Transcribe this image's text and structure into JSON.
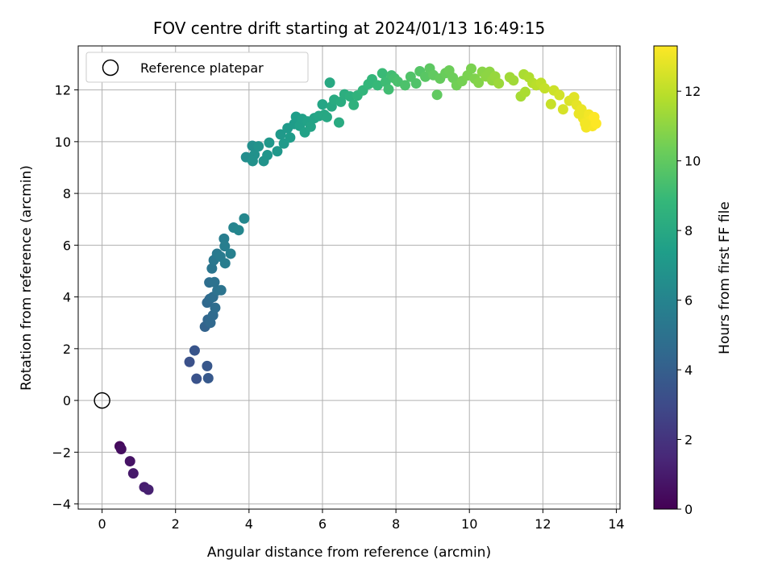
{
  "chart_data": {
    "type": "scatter",
    "title": "FOV centre drift starting at 2024/01/13 16:49:15",
    "xlabel": "Angular distance from reference (arcmin)",
    "ylabel": "Rotation from reference (arcmin)",
    "xlim": [
      -0.65,
      14.1
    ],
    "ylim": [
      -4.2,
      13.7
    ],
    "xticks": [
      0,
      2,
      4,
      6,
      8,
      10,
      12,
      14
    ],
    "yticks": [
      -4,
      -2,
      0,
      2,
      4,
      6,
      8,
      10,
      12
    ],
    "xtick_labels": [
      "0",
      "2",
      "4",
      "6",
      "8",
      "10",
      "12",
      "14"
    ],
    "ytick_labels": [
      "−4",
      "−2",
      "0",
      "2",
      "4",
      "6",
      "8",
      "10",
      "12"
    ],
    "grid": true,
    "colormap": "viridis",
    "colorbar": {
      "label": "Hours from first FF file",
      "range": [
        0,
        13.3
      ],
      "ticks": [
        0,
        2,
        4,
        6,
        8,
        10,
        12
      ],
      "tick_labels": [
        "0",
        "2",
        "4",
        "6",
        "8",
        "10",
        "12"
      ]
    },
    "legend": {
      "position": "top-left",
      "entries": [
        {
          "label": "Reference platepar",
          "marker": "open-circle",
          "color": "#000000"
        }
      ]
    },
    "reference_point": {
      "x": 0,
      "y": 0
    },
    "points": [
      [
        0.48,
        -1.77,
        0.3
      ],
      [
        0.52,
        -1.88,
        0.5
      ],
      [
        0.76,
        -2.35,
        0.7
      ],
      [
        0.85,
        -2.82,
        0.9
      ],
      [
        1.15,
        -3.35,
        1.1
      ],
      [
        1.26,
        -3.45,
        1.2
      ],
      [
        2.38,
        1.49,
        3.3
      ],
      [
        2.52,
        1.93,
        3.5
      ],
      [
        2.57,
        0.84,
        3.4
      ],
      [
        2.86,
        1.33,
        3.6
      ],
      [
        2.89,
        0.86,
        3.7
      ],
      [
        2.8,
        2.85,
        4.2
      ],
      [
        2.88,
        3.12,
        4.4
      ],
      [
        2.95,
        3.0,
        4.5
      ],
      [
        3.02,
        3.29,
        4.6
      ],
      [
        2.86,
        3.78,
        4.5
      ],
      [
        2.93,
        3.92,
        4.6
      ],
      [
        3.08,
        3.58,
        4.7
      ],
      [
        3.02,
        4.0,
        4.8
      ],
      [
        2.92,
        4.56,
        4.8
      ],
      [
        3.06,
        4.57,
        5.0
      ],
      [
        3.14,
        4.25,
        5.0
      ],
      [
        3.24,
        4.26,
        5.1
      ],
      [
        2.99,
        5.1,
        5.2
      ],
      [
        3.04,
        5.42,
        5.3
      ],
      [
        3.13,
        5.67,
        5.4
      ],
      [
        3.22,
        5.56,
        5.5
      ],
      [
        3.32,
        6.25,
        5.6
      ],
      [
        3.34,
        5.96,
        5.7
      ],
      [
        3.35,
        5.3,
        5.6
      ],
      [
        3.5,
        5.67,
        5.8
      ],
      [
        3.58,
        6.68,
        6.0
      ],
      [
        3.72,
        6.58,
        6.1
      ],
      [
        3.87,
        7.03,
        6.2
      ],
      [
        3.92,
        9.4,
        6.5
      ],
      [
        4.09,
        9.84,
        6.6
      ],
      [
        4.15,
        9.5,
        6.7
      ],
      [
        4.1,
        9.25,
        6.7
      ],
      [
        4.26,
        9.82,
        6.8
      ],
      [
        4.4,
        9.25,
        6.8
      ],
      [
        4.5,
        9.48,
        6.9
      ],
      [
        4.55,
        9.96,
        7.0
      ],
      [
        4.77,
        9.63,
        7.0
      ],
      [
        4.86,
        10.28,
        7.1
      ],
      [
        4.95,
        9.93,
        7.2
      ],
      [
        5.05,
        10.52,
        7.2
      ],
      [
        5.12,
        10.16,
        7.3
      ],
      [
        5.23,
        10.68,
        7.3
      ],
      [
        5.28,
        10.96,
        7.4
      ],
      [
        5.38,
        10.61,
        7.5
      ],
      [
        5.45,
        10.88,
        7.5
      ],
      [
        5.52,
        10.36,
        7.6
      ],
      [
        5.6,
        10.78,
        7.6
      ],
      [
        5.68,
        10.58,
        7.7
      ],
      [
        5.78,
        10.91,
        7.7
      ],
      [
        5.9,
        10.99,
        7.8
      ],
      [
        6.0,
        11.44,
        7.8
      ],
      [
        6.05,
        11.04,
        7.9
      ],
      [
        6.12,
        10.95,
        7.9
      ],
      [
        6.2,
        12.28,
        8.0
      ],
      [
        6.25,
        11.36,
        8.0
      ],
      [
        6.32,
        11.62,
        8.1
      ],
      [
        6.45,
        10.74,
        8.1
      ],
      [
        6.5,
        11.54,
        8.2
      ],
      [
        6.6,
        11.83,
        8.3
      ],
      [
        6.75,
        11.75,
        8.4
      ],
      [
        6.85,
        11.42,
        8.5
      ],
      [
        6.95,
        11.78,
        8.6
      ],
      [
        7.1,
        11.98,
        8.7
      ],
      [
        7.25,
        12.22,
        8.8
      ],
      [
        7.35,
        12.41,
        8.8
      ],
      [
        7.5,
        12.18,
        8.9
      ],
      [
        7.63,
        12.64,
        9.0
      ],
      [
        7.72,
        12.31,
        9.1
      ],
      [
        7.8,
        12.02,
        9.2
      ],
      [
        7.88,
        12.56,
        9.2
      ],
      [
        7.96,
        12.45,
        9.3
      ],
      [
        8.05,
        12.32,
        9.4
      ],
      [
        8.25,
        12.18,
        9.5
      ],
      [
        8.4,
        12.51,
        9.6
      ],
      [
        8.55,
        12.25,
        9.6
      ],
      [
        8.65,
        12.72,
        9.7
      ],
      [
        8.8,
        12.51,
        9.8
      ],
      [
        8.92,
        12.83,
        9.9
      ],
      [
        9.02,
        12.57,
        10.0
      ],
      [
        9.12,
        11.81,
        10.0
      ],
      [
        9.2,
        12.44,
        10.1
      ],
      [
        9.35,
        12.65,
        10.2
      ],
      [
        9.45,
        12.75,
        10.3
      ],
      [
        9.55,
        12.47,
        10.3
      ],
      [
        9.65,
        12.18,
        10.4
      ],
      [
        9.8,
        12.34,
        10.5
      ],
      [
        9.95,
        12.56,
        10.6
      ],
      [
        10.05,
        12.82,
        10.6
      ],
      [
        10.15,
        12.43,
        10.7
      ],
      [
        10.25,
        12.28,
        10.8
      ],
      [
        10.35,
        12.7,
        10.9
      ],
      [
        10.45,
        12.52,
        11.0
      ],
      [
        10.55,
        12.7,
        11.0
      ],
      [
        10.62,
        12.37,
        11.1
      ],
      [
        10.7,
        12.52,
        11.2
      ],
      [
        10.8,
        12.25,
        11.3
      ],
      [
        11.1,
        12.49,
        11.4
      ],
      [
        11.2,
        12.37,
        11.4
      ],
      [
        11.4,
        11.75,
        11.5
      ],
      [
        11.52,
        11.92,
        11.6
      ],
      [
        11.48,
        12.6,
        11.6
      ],
      [
        11.62,
        12.49,
        11.7
      ],
      [
        11.72,
        12.27,
        11.8
      ],
      [
        11.82,
        12.18,
        11.9
      ],
      [
        11.95,
        12.27,
        12.0
      ],
      [
        12.05,
        12.06,
        12.1
      ],
      [
        12.22,
        11.45,
        12.2
      ],
      [
        12.3,
        11.98,
        12.3
      ],
      [
        12.45,
        11.8,
        12.4
      ],
      [
        12.55,
        11.25,
        12.5
      ],
      [
        12.72,
        11.58,
        12.6
      ],
      [
        12.85,
        11.72,
        12.7
      ],
      [
        12.92,
        11.42,
        12.8
      ],
      [
        13.05,
        11.25,
        12.9
      ],
      [
        13.1,
        10.9,
        13.0
      ],
      [
        13.18,
        10.55,
        13.1
      ],
      [
        13.25,
        11.05,
        13.1
      ],
      [
        13.3,
        10.82,
        13.2
      ],
      [
        13.35,
        10.6,
        13.2
      ],
      [
        13.4,
        10.95,
        13.3
      ],
      [
        13.45,
        10.7,
        13.3
      ],
      [
        13.15,
        10.7,
        13.1
      ],
      [
        12.98,
        11.08,
        12.9
      ]
    ]
  }
}
